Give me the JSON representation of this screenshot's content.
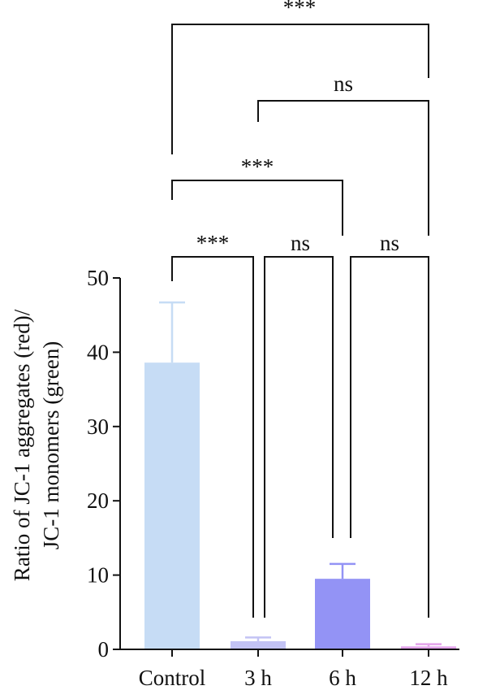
{
  "chart_data": {
    "type": "bar",
    "categories": [
      "Control",
      "3 h",
      "6 h",
      "12 h"
    ],
    "values": [
      38.6,
      1.1,
      9.5,
      0.4
    ],
    "errors": [
      8.1,
      0.5,
      2.0,
      0.3
    ],
    "colors": [
      "#c6dcf5",
      "#c3c3f4",
      "#9393f5",
      "#e3a3ea"
    ],
    "ylabel_lines": [
      "Ratio of JC-1 aggregates (red)/",
      "JC-1 monomers (green)"
    ],
    "ylim": [
      0,
      50
    ],
    "yticks": [
      "0",
      "10",
      "20",
      "30",
      "40",
      "50"
    ],
    "grid": false,
    "significance": [
      {
        "from": "Control",
        "to": "3 h",
        "label": "***"
      },
      {
        "from": "3 h",
        "to": "6 h",
        "label": "ns"
      },
      {
        "from": "6 h",
        "to": "12 h",
        "label": "ns"
      },
      {
        "from": "Control",
        "to": "6 h",
        "label": "***"
      },
      {
        "from": "3 h",
        "to": "12 h",
        "label": "ns"
      },
      {
        "from": "Control",
        "to": "12 h",
        "label": "***"
      }
    ]
  }
}
